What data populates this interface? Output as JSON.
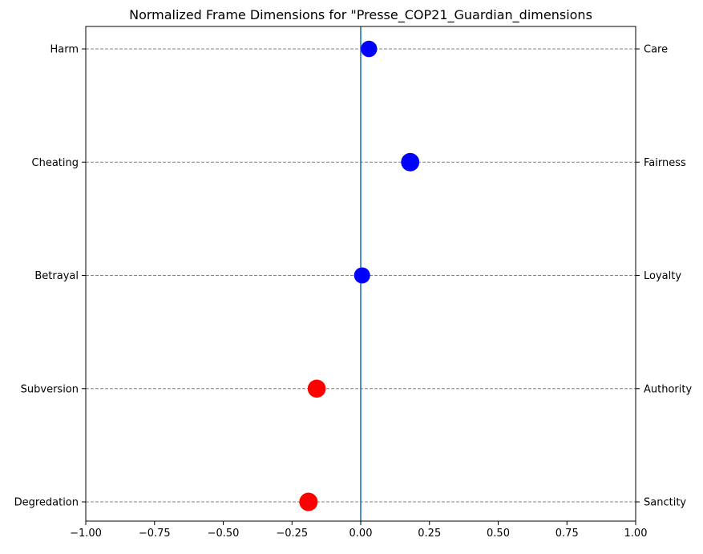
{
  "chart_data": {
    "type": "scatter",
    "title": "Normalized Frame Dimensions for \"Presse_COP21_Guardian_dimensions",
    "xlabel": "",
    "ylabel": "",
    "xlim": [
      -1.0,
      1.0
    ],
    "x_ticks": [
      -1.0,
      -0.75,
      -0.5,
      -0.25,
      0.0,
      0.25,
      0.5,
      0.75,
      1.0
    ],
    "x_tick_labels": [
      "−1.00",
      "−0.75",
      "−0.50",
      "−0.25",
      "0.00",
      "0.25",
      "0.50",
      "0.75",
      "1.00"
    ],
    "left_labels": [
      "Harm",
      "Cheating",
      "Betrayal",
      "Subversion",
      "Degredation"
    ],
    "right_labels": [
      "Care",
      "Fairness",
      "Loyalty",
      "Authority",
      "Sanctity"
    ],
    "vertical_line_x": 0.0,
    "horizontal_gridlines": true,
    "points": [
      {
        "left": "Harm",
        "right": "Care",
        "x": 0.03,
        "color": "#0000ff"
      },
      {
        "left": "Cheating",
        "right": "Fairness",
        "x": 0.18,
        "color": "#0000ff"
      },
      {
        "left": "Betrayal",
        "right": "Loyalty",
        "x": 0.005,
        "color": "#0000ff"
      },
      {
        "left": "Subversion",
        "right": "Authority",
        "x": -0.16,
        "color": "#ff0000"
      },
      {
        "left": "Degredation",
        "right": "Sanctity",
        "x": -0.19,
        "color": "#ff0000"
      }
    ],
    "colors": {
      "positive": "#0000ff",
      "negative": "#ff0000",
      "center_line": "#1f77b4",
      "grid": "#808080"
    }
  }
}
